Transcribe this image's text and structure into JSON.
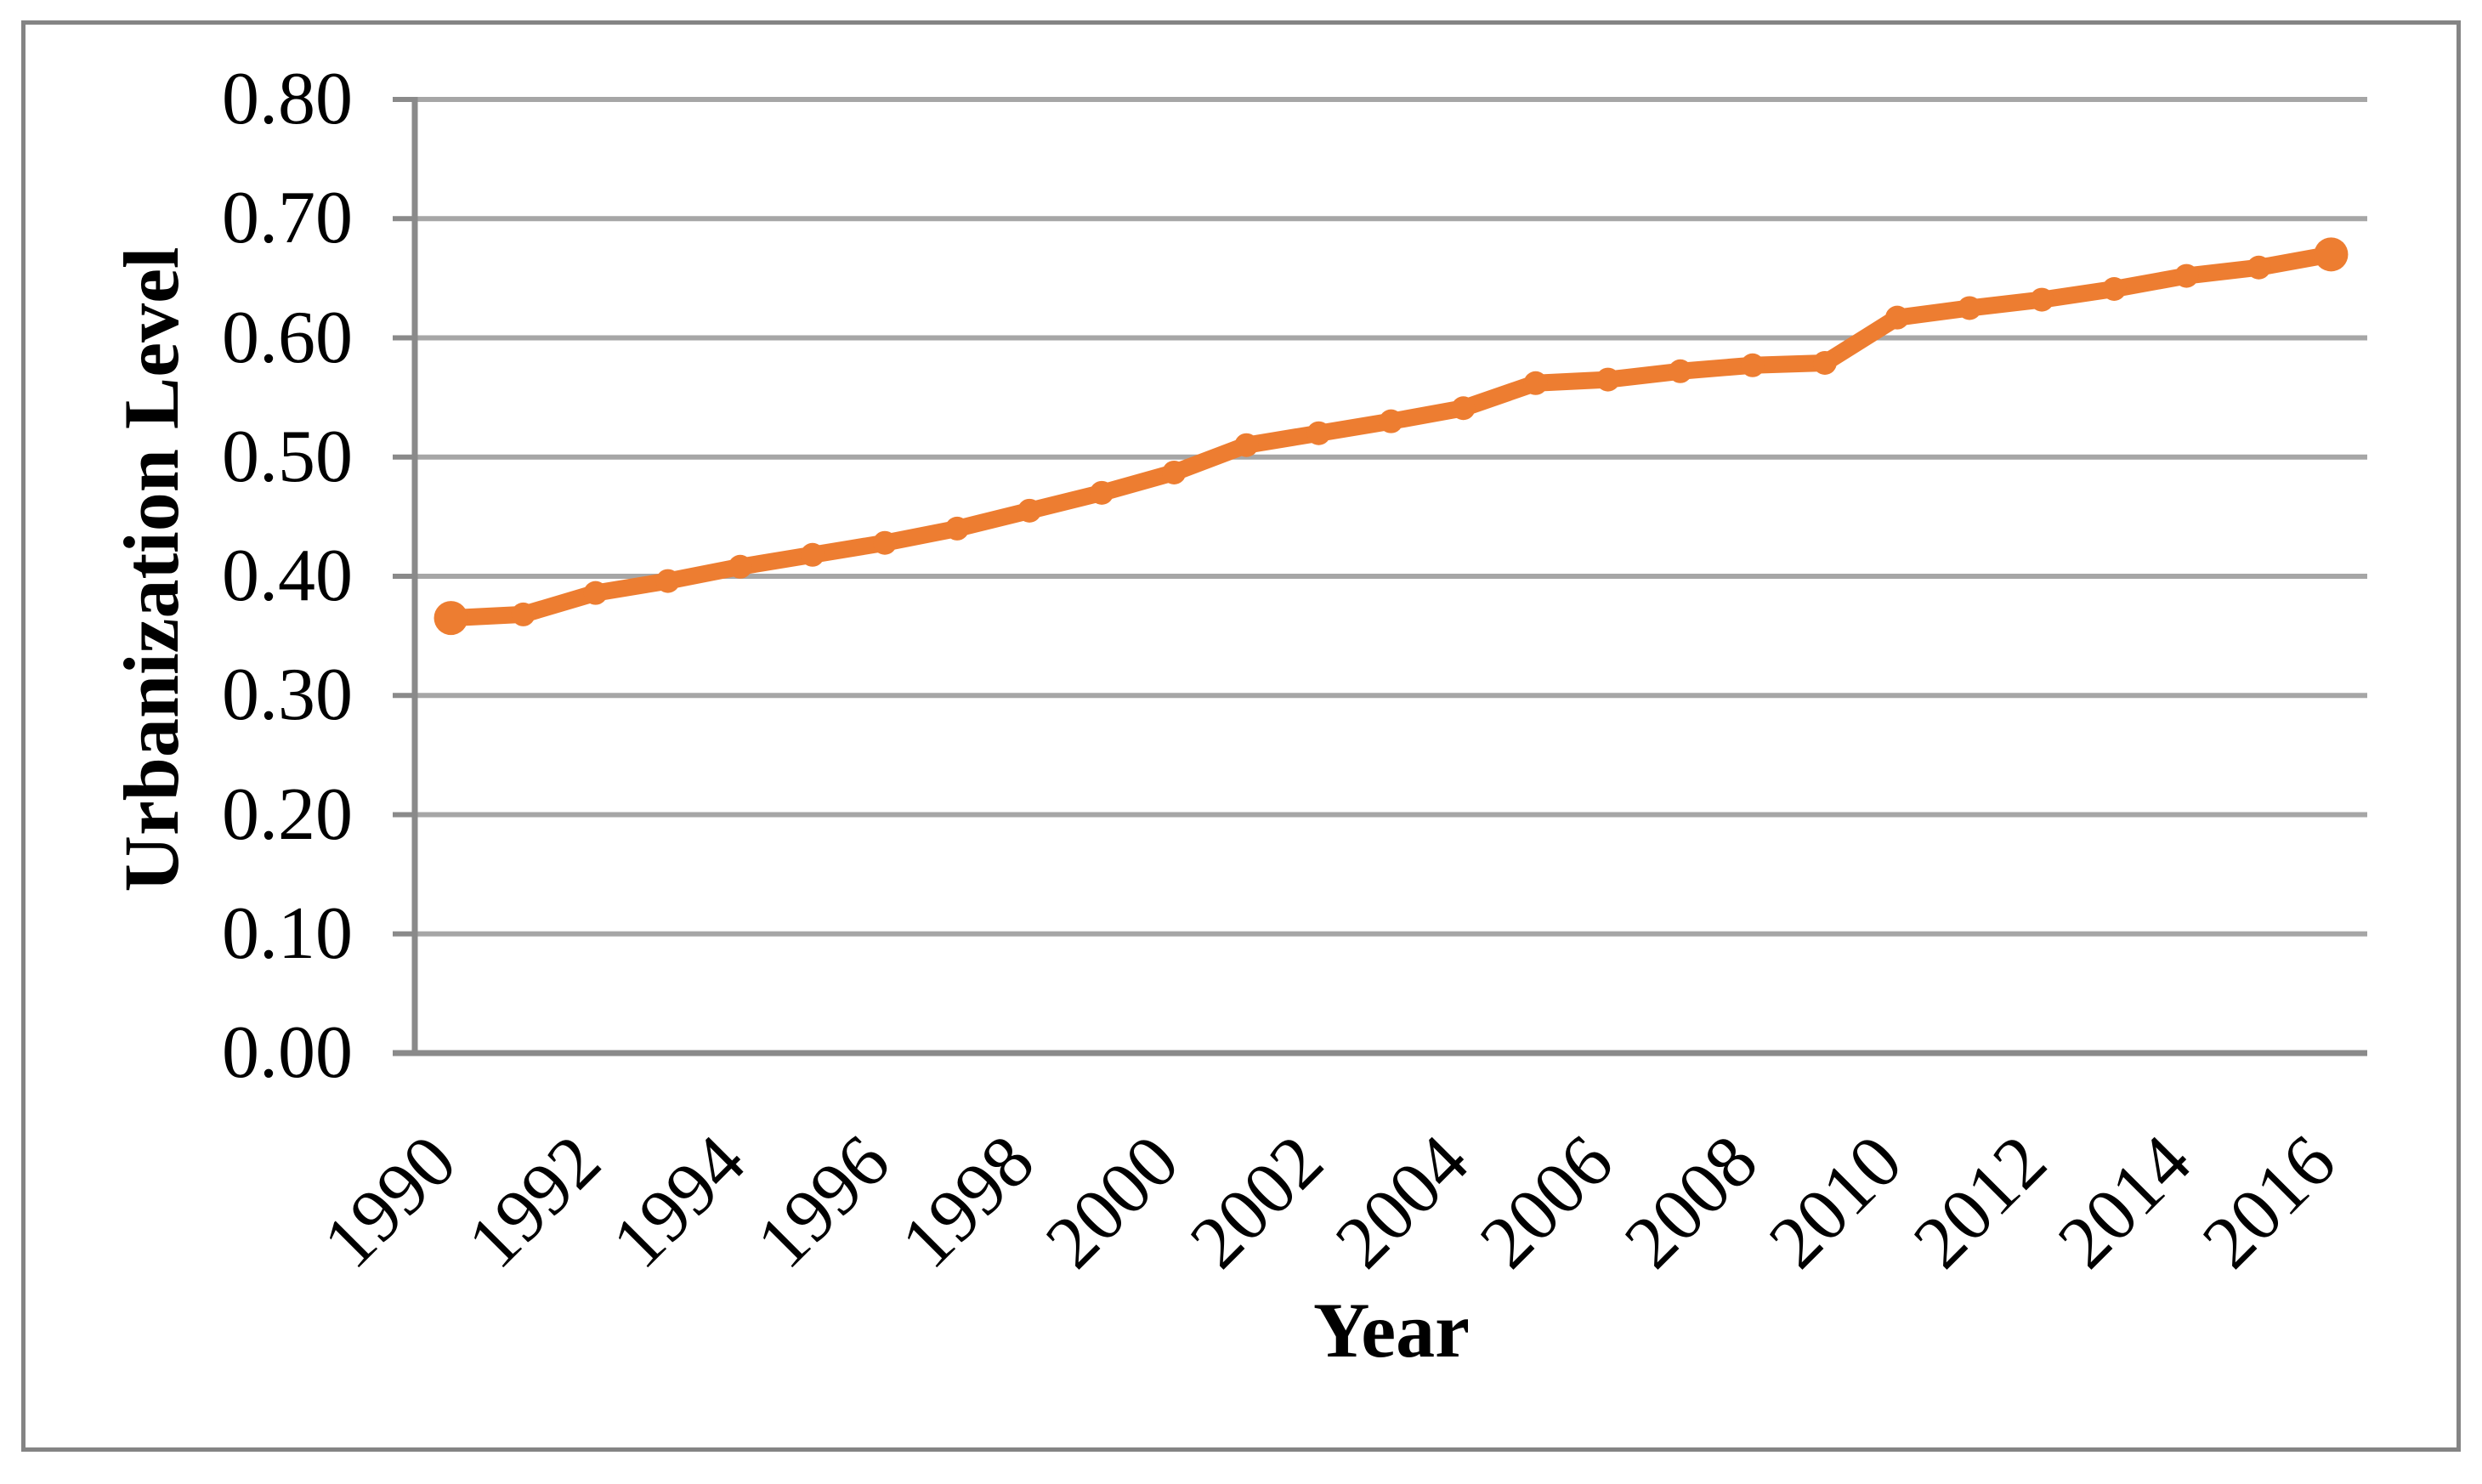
{
  "figure": {
    "background_color": "#FFFFFF",
    "border_color": "#848484"
  },
  "chart_data": {
    "type": "line",
    "title": "",
    "xlabel": "Year",
    "ylabel": "Urbanization Level",
    "x": [
      1990,
      1991,
      1992,
      1993,
      1994,
      1995,
      1996,
      1997,
      1998,
      1999,
      2000,
      2001,
      2002,
      2003,
      2004,
      2005,
      2006,
      2007,
      2008,
      2009,
      2010,
      2011,
      2012,
      2013,
      2014,
      2015,
      2016
    ],
    "series": [
      {
        "name": "Urbanization Level",
        "color": "#ED7D31",
        "values": [
          0.365,
          0.368,
          0.386,
          0.396,
          0.408,
          0.418,
          0.428,
          0.44,
          0.455,
          0.47,
          0.487,
          0.51,
          0.52,
          0.53,
          0.541,
          0.562,
          0.565,
          0.572,
          0.577,
          0.579,
          0.617,
          0.625,
          0.632,
          0.641,
          0.652,
          0.659,
          0.67
        ]
      }
    ],
    "ylim": [
      0.0,
      0.8
    ],
    "ytick_step": 0.1,
    "ytick_labels": [
      "0.00",
      "0.10",
      "0.20",
      "0.30",
      "0.40",
      "0.50",
      "0.60",
      "0.70",
      "0.80"
    ],
    "xtick_labels": [
      "1990",
      "1992",
      "1994",
      "1996",
      "1998",
      "2000",
      "2002",
      "2004",
      "2006",
      "2008",
      "2010",
      "2012",
      "2014",
      "2016"
    ],
    "grid": "horizontal",
    "gridline_color": "#A6A6A6",
    "axis_color": "#8A8A8A",
    "legend_position": "none",
    "marker": "circle"
  },
  "layout_text": {
    "note": ""
  }
}
